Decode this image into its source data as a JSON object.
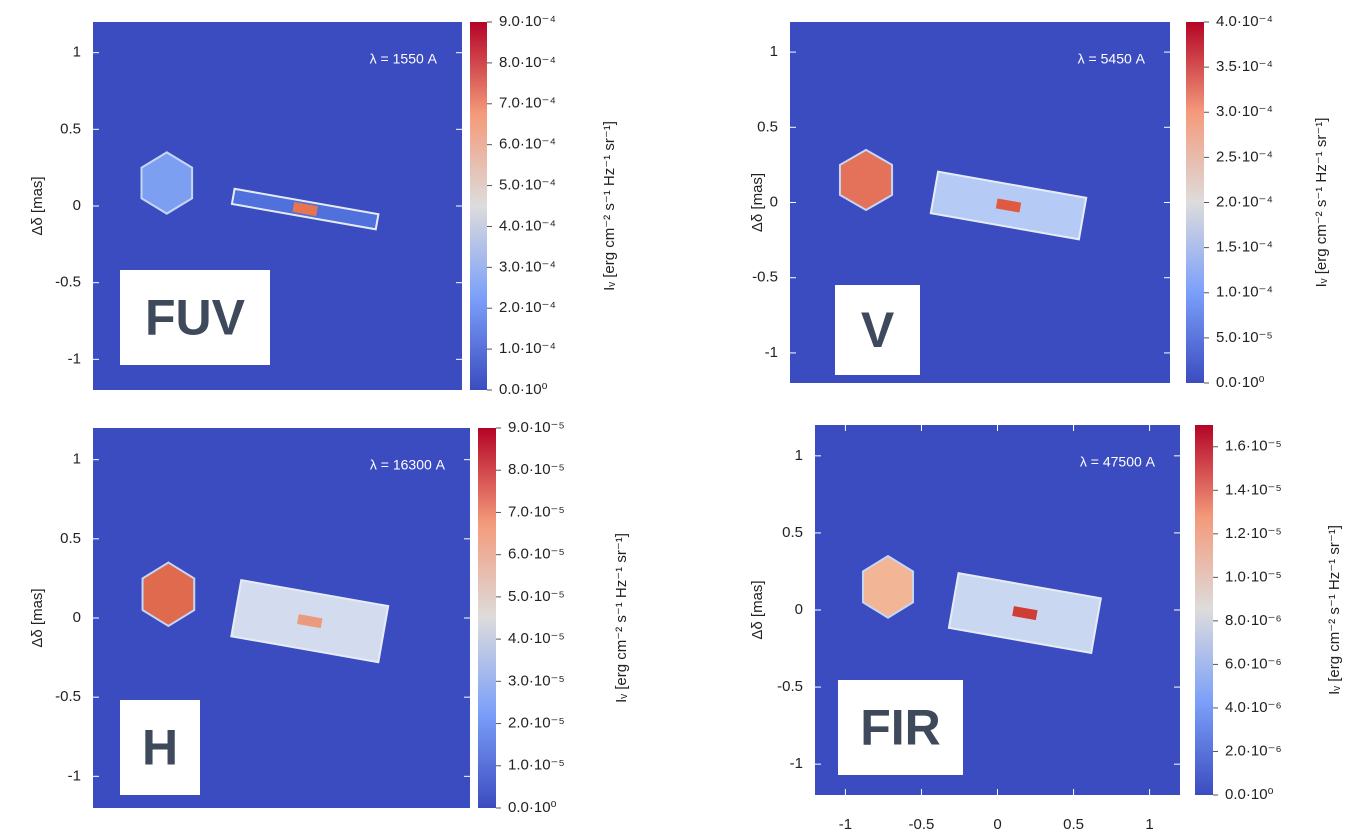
{
  "chart_data": [
    {
      "type": "heatmap",
      "label": "FUV",
      "annotation": "λ = 1550 A",
      "ylabel": "Δδ [mas]",
      "xlim": [
        -1.2,
        1.2
      ],
      "ylim": [
        -1.2,
        1.2
      ],
      "yticks": [
        -1,
        -0.5,
        0,
        0.5,
        1
      ],
      "colorbar_label": "Iᵥ [erg cm⁻² s⁻¹ Hz⁻¹ sr⁻¹]",
      "clim": [
        0,
        0.0009
      ],
      "cticks": [
        {
          "value": 0,
          "label": "0.0·10⁰"
        },
        {
          "value": 0.0001,
          "label": "1.0·10⁻⁴"
        },
        {
          "value": 0.0002,
          "label": "2.0·10⁻⁴"
        },
        {
          "value": 0.0003,
          "label": "3.0·10⁻⁴"
        },
        {
          "value": 0.0004,
          "label": "4.0·10⁻⁴"
        },
        {
          "value": 0.0005,
          "label": "5.0·10⁻⁴"
        },
        {
          "value": 0.0006,
          "label": "6.0·10⁻⁴"
        },
        {
          "value": 0.0007,
          "label": "7.0·10⁻⁴"
        },
        {
          "value": 0.0008,
          "label": "8.0·10⁻⁴"
        },
        {
          "value": 0.0009,
          "label": "9.0·10⁻⁴"
        }
      ]
    },
    {
      "type": "heatmap",
      "label": "V",
      "annotation": "λ = 5450 A",
      "ylabel": "Δδ [mas]",
      "xlim": [
        -1.2,
        1.2
      ],
      "ylim": [
        -1.2,
        1.2
      ],
      "yticks": [
        -1,
        -0.5,
        0,
        0.5,
        1
      ],
      "colorbar_label": "Iᵥ [erg cm⁻² s⁻¹ Hz⁻¹ sr⁻¹]",
      "clim": [
        0,
        0.0004
      ],
      "cticks": [
        {
          "value": 0,
          "label": "0.0·10⁰"
        },
        {
          "value": 5e-05,
          "label": "5.0·10⁻⁵"
        },
        {
          "value": 0.0001,
          "label": "1.0·10⁻⁴"
        },
        {
          "value": 0.00015,
          "label": "1.5·10⁻⁴"
        },
        {
          "value": 0.0002,
          "label": "2.0·10⁻⁴"
        },
        {
          "value": 0.00025,
          "label": "2.5·10⁻⁴"
        },
        {
          "value": 0.0003,
          "label": "3.0·10⁻⁴"
        },
        {
          "value": 0.00035,
          "label": "3.5·10⁻⁴"
        },
        {
          "value": 0.0004,
          "label": "4.0·10⁻⁴"
        }
      ]
    },
    {
      "type": "heatmap",
      "label": "H",
      "annotation": "λ = 16300 A",
      "ylabel": "Δδ [mas]",
      "xlim": [
        -1.2,
        1.2
      ],
      "ylim": [
        -1.2,
        1.2
      ],
      "yticks": [
        -1,
        -0.5,
        0,
        0.5,
        1
      ],
      "colorbar_label": "Iᵥ [erg cm⁻² s⁻¹ Hz⁻¹ sr⁻¹]",
      "clim": [
        0,
        9e-05
      ],
      "cticks": [
        {
          "value": 0,
          "label": "0.0·10⁰"
        },
        {
          "value": 1e-05,
          "label": "1.0·10⁻⁵"
        },
        {
          "value": 2e-05,
          "label": "2.0·10⁻⁵"
        },
        {
          "value": 3e-05,
          "label": "3.0·10⁻⁵"
        },
        {
          "value": 4e-05,
          "label": "4.0·10⁻⁵"
        },
        {
          "value": 5e-05,
          "label": "5.0·10⁻⁵"
        },
        {
          "value": 6e-05,
          "label": "6.0·10⁻⁵"
        },
        {
          "value": 7e-05,
          "label": "7.0·10⁻⁵"
        },
        {
          "value": 8e-05,
          "label": "8.0·10⁻⁵"
        },
        {
          "value": 9e-05,
          "label": "9.0·10⁻⁵"
        }
      ]
    },
    {
      "type": "heatmap",
      "label": "FIR",
      "annotation": "λ = 47500 A",
      "ylabel": "Δδ [mas]",
      "xlim": [
        -1.2,
        1.2
      ],
      "ylim": [
        -1.2,
        1.2
      ],
      "yticks": [
        -1,
        -0.5,
        0,
        0.5,
        1
      ],
      "xticks": [
        -1,
        -0.5,
        0,
        0.5,
        1
      ],
      "colorbar_label": "Iᵥ [erg cm⁻² s⁻¹ Hz⁻¹ sr⁻¹]",
      "clim": [
        0,
        1.7e-05
      ],
      "cticks": [
        {
          "value": 0,
          "label": "0.0·10⁰"
        },
        {
          "value": 2e-06,
          "label": "2.0·10⁻⁶"
        },
        {
          "value": 4e-06,
          "label": "4.0·10⁻⁶"
        },
        {
          "value": 6e-06,
          "label": "6.0·10⁻⁶"
        },
        {
          "value": 8e-06,
          "label": "8.0·10⁻⁶"
        },
        {
          "value": 1e-05,
          "label": "1.0·10⁻⁵"
        },
        {
          "value": 1.2e-05,
          "label": "1.2·10⁻⁵"
        },
        {
          "value": 1.4e-05,
          "label": "1.4·10⁻⁵"
        },
        {
          "value": 1.6e-05,
          "label": "1.6·10⁻⁵"
        }
      ]
    }
  ]
}
